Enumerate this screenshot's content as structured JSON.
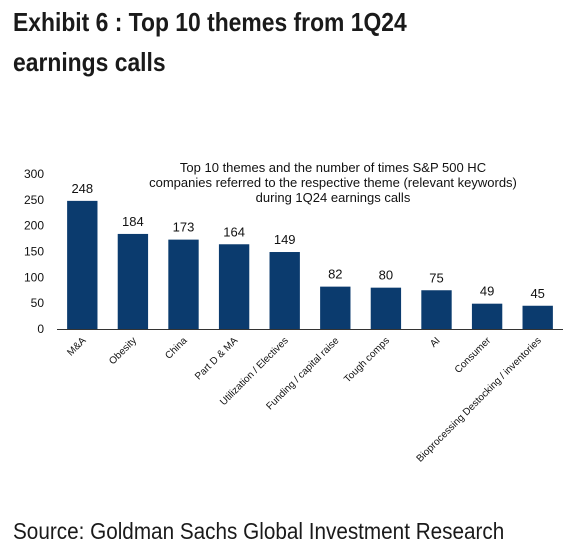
{
  "exhibit": {
    "title": "Exhibit 6 : Top 10 themes from 1Q24 earnings calls",
    "source": "Source: Goldman Sachs Global Investment Research"
  },
  "colors": {
    "bar": "#0b3b6e",
    "axis": "#333333",
    "text": "#111111"
  },
  "chart_data": {
    "type": "bar",
    "title": "Top 10 themes and the number of times S&P 500 HC companies referred to the respective theme (relevant keywords) during 1Q24 earnings calls",
    "title_lines": [
      "Top 10 themes and the number of times S&P 500 HC",
      "companies referred to the respective theme (relevant keywords)",
      "during 1Q24 earnings calls"
    ],
    "categories": [
      "M&A",
      "Obesity",
      "China",
      "Part D & MA",
      "Utilization / Electives",
      "Funding / capital raise",
      "Tough comps",
      "AI",
      "Consumer",
      "Bioprocessing Destocking / inventories"
    ],
    "values": [
      248,
      184,
      173,
      164,
      149,
      82,
      80,
      75,
      49,
      45
    ],
    "data_labels": true,
    "xlabel": "",
    "ylabel": "",
    "ylim": [
      0,
      300
    ],
    "yticks": [
      0,
      50,
      100,
      150,
      200,
      250,
      300
    ],
    "grid": false,
    "legend": "none"
  }
}
